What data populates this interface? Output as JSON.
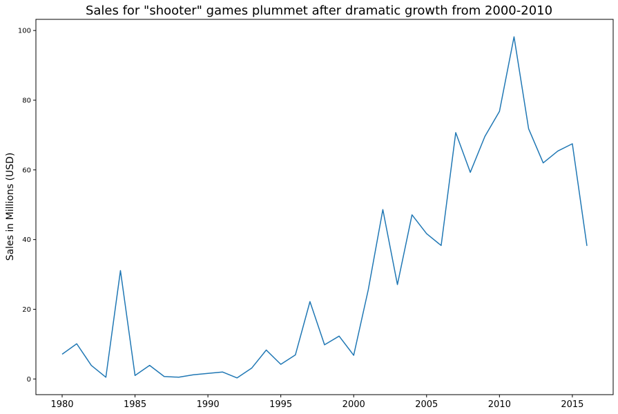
{
  "chart_data": {
    "type": "line",
    "title": "Sales for \"shooter\" games plummet after dramatic growth from 2000-2010",
    "xlabel": "",
    "ylabel": "Sales in Millions (USD)",
    "xlim": [
      1978.2,
      2017.8
    ],
    "ylim": [
      -4.5,
      103.2
    ],
    "xticks": [
      1980,
      1985,
      1990,
      1995,
      2000,
      2005,
      2010,
      2015
    ],
    "yticks": [
      0,
      20,
      40,
      60,
      80,
      100
    ],
    "grid": false,
    "legend": "none",
    "series": [
      {
        "color": "#1f77b4",
        "x": [
          1980,
          1981,
          1982,
          1983,
          1984,
          1985,
          1986,
          1987,
          1988,
          1989,
          1990,
          1991,
          1992,
          1993,
          1994,
          1995,
          1996,
          1997,
          1998,
          1999,
          2000,
          2001,
          2002,
          2003,
          2004,
          2005,
          2006,
          2007,
          2008,
          2009,
          2010,
          2011,
          2012,
          2013,
          2014,
          2015,
          2016
        ],
        "values": [
          7.1,
          10.1,
          3.9,
          0.5,
          31.1,
          1.0,
          3.9,
          0.7,
          0.5,
          1.2,
          1.6,
          2.0,
          0.3,
          3.1,
          8.3,
          4.2,
          6.9,
          22.2,
          9.8,
          12.3,
          6.8,
          25.6,
          48.6,
          27.1,
          47.1,
          41.7,
          38.3,
          70.7,
          59.3,
          69.6,
          76.8,
          98.2,
          71.8,
          62.0,
          65.4,
          67.5,
          38.2
        ]
      }
    ]
  }
}
